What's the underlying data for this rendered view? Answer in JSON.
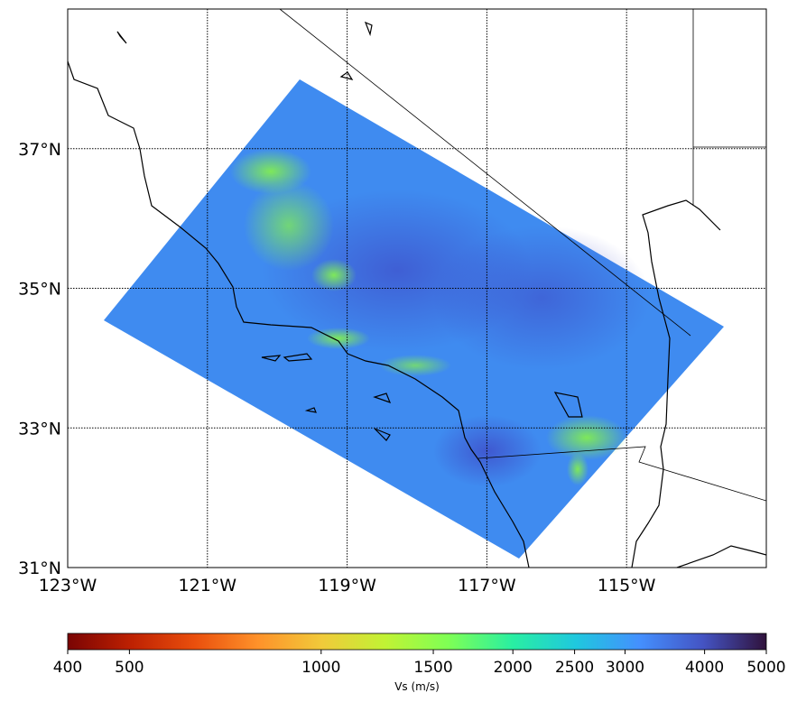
{
  "chart_data": {
    "type": "map",
    "xlim": [
      -123,
      -113
    ],
    "ylim": [
      31,
      39
    ],
    "xticks": [
      {
        "value": -123,
        "label": "123°W"
      },
      {
        "value": -121,
        "label": "121°W"
      },
      {
        "value": -119,
        "label": "119°W"
      },
      {
        "value": -117,
        "label": "117°W"
      },
      {
        "value": -115,
        "label": "115°W"
      }
    ],
    "yticks": [
      {
        "value": 31,
        "label": "31°N"
      },
      {
        "value": 33,
        "label": "33°N"
      },
      {
        "value": 35,
        "label": "35°N"
      },
      {
        "value": 37,
        "label": "37°N"
      }
    ],
    "grid": true,
    "colorbar": {
      "label": "Vs (m/s)",
      "lim": [
        400,
        5000
      ],
      "scale": "log",
      "ticks": [
        400,
        500,
        1000,
        1500,
        2000,
        2500,
        3000,
        4000,
        5000
      ],
      "colors": [
        "#7a0403",
        "#be2102",
        "#ea4f0d",
        "#fe922a",
        "#f1ca3a",
        "#c1f334",
        "#7eff55",
        "#29efa2",
        "#1fc8de",
        "#4490fe",
        "#4454c4",
        "#30123b"
      ]
    }
  }
}
